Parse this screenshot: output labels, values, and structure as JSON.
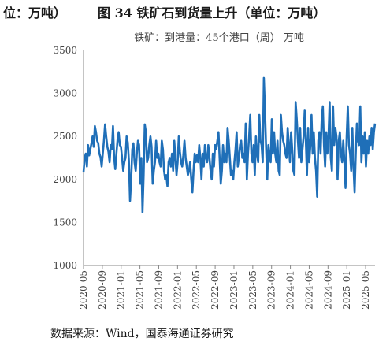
{
  "header": {
    "prev_caption": "位：万吨）",
    "figure_title": "图 34 铁矿石到货量上升（单位：万吨）"
  },
  "source": "数据来源：Wind，国泰海通证券研究",
  "chart_data": {
    "type": "line",
    "title": "铁矿：到港量：45个港口（周）  万吨",
    "xlabel": "",
    "ylabel": "",
    "ylim": [
      1000,
      3500
    ],
    "yticks": [
      1000,
      1500,
      2000,
      2500,
      3000,
      3500
    ],
    "xlim": [
      "2020-05",
      "2025-07"
    ],
    "xticks": [
      "2020-05",
      "2020-09",
      "2021-01",
      "2021-05",
      "2021-09",
      "2022-01",
      "2022-05",
      "2022-09",
      "2023-01",
      "2023-05",
      "2023-09",
      "2024-01",
      "2024-05",
      "2024-09",
      "2025-01",
      "2025-05"
    ],
    "grid": false,
    "legend": "none",
    "color": "#1f6fb8",
    "series": [
      {
        "x_start": "2020-05",
        "frequency": "weekly",
        "values": [
          2080,
          2250,
          2300,
          2150,
          2400,
          2280,
          2350,
          2420,
          2500,
          2380,
          2620,
          2550,
          2450,
          2420,
          2300,
          2260,
          2150,
          2300,
          2450,
          2640,
          2500,
          2380,
          2320,
          2200,
          2400,
          2350,
          2620,
          2250,
          2120,
          2300,
          2460,
          2550,
          2400,
          2380,
          2250,
          2100,
          2200,
          2250,
          2500,
          2430,
          2220,
          1750,
          2000,
          2350,
          2420,
          2200,
          2100,
          2300,
          2450,
          2400,
          1950,
          2250,
          1620,
          2050,
          2640,
          2550,
          2200,
          2250,
          2400,
          2500,
          2380,
          1950,
          2100,
          2200,
          2450,
          2250,
          2300,
          2200,
          2150,
          2450,
          2350,
          2100,
          2000,
          2050,
          1920,
          2200,
          2250,
          2150,
          2300,
          2100,
          2450,
          2250,
          2050,
          2200,
          2500,
          2320,
          2200,
          2150,
          2280,
          2450,
          2250,
          2150,
          2050,
          2100,
          2200,
          2000,
          1850,
          2100,
          2300,
          2200,
          2280,
          2200,
          2400,
          2250,
          2000,
          2300,
          2150,
          2400,
          2250,
          2200,
          2400,
          2250,
          2100,
          2000,
          2300,
          2150,
          2400,
          2350,
          2450,
          2550,
          2250,
          1950,
          2100,
          2400,
          2200,
          2300,
          2200,
          2600,
          2450,
          2250,
          2050,
          2100,
          2000,
          2200,
          2350,
          2550,
          2150,
          2250,
          2400,
          2450,
          2250,
          2300,
          2200,
          2650,
          2000,
          2300,
          2500,
          2750,
          2300,
          2200,
          2400,
          2050,
          2500,
          2300,
          2200,
          2750,
          2450,
          2400,
          2200,
          3180,
          2800,
          2350,
          2000,
          2400,
          2250,
          2200,
          2700,
          2300,
          2550,
          2300,
          2200,
          2450,
          2100,
          2050,
          2750,
          2550,
          2450,
          2400,
          2300,
          2250,
          2600,
          2400,
          2200,
          2550,
          2350,
          2100,
          2050,
          2900,
          2700,
          2450,
          2250,
          2600,
          2200,
          2350,
          2500,
          2800,
          2450,
          2050,
          2600,
          2200,
          2400,
          2750,
          2300,
          2550,
          2250,
          2100,
          1800,
          2450,
          2550,
          2300,
          2700,
          2850,
          2400,
          2150,
          2550,
          2300,
          2500,
          2900,
          2250,
          2100,
          2850,
          2400,
          2600,
          2500,
          2000,
          2450,
          2550,
          2300,
          2200,
          2450,
          2200,
          1900,
          2500,
          2850,
          2400,
          2300,
          2100,
          2600,
          2150,
          1850,
          2300,
          2650,
          2450,
          2400,
          2850,
          2200,
          2500,
          2300,
          2550,
          2150,
          2450,
          2300,
          2500,
          2400,
          2600,
          2350,
          2550,
          2650
        ]
      }
    ]
  }
}
